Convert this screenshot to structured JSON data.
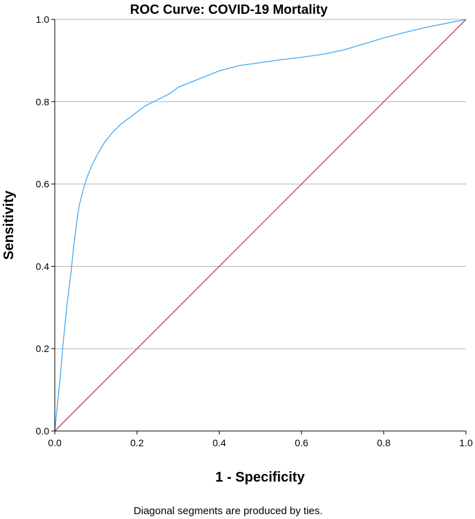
{
  "chart_data": {
    "type": "line",
    "title": "ROC Curve: COVID-19 Mortality",
    "xlabel": "1 - Specificity",
    "ylabel": "Sensitivity",
    "footnote": "Diagonal segments are produced by ties.",
    "xlim": [
      0,
      1
    ],
    "ylim": [
      0,
      1
    ],
    "xticks": [
      "0.0",
      "0.2",
      "0.4",
      "0.6",
      "0.8",
      "1.0"
    ],
    "yticks": [
      "0.0",
      "0.2",
      "0.4",
      "0.6",
      "0.8",
      "1.0"
    ],
    "grid": "horizontal",
    "series": [
      {
        "color": "#3fa9f5",
        "x": [
          0,
          0.005,
          0.01,
          0.015,
          0.02,
          0.025,
          0.03,
          0.035,
          0.04,
          0.045,
          0.05,
          0.055,
          0.06,
          0.07,
          0.08,
          0.09,
          0.1,
          0.12,
          0.14,
          0.16,
          0.18,
          0.2,
          0.22,
          0.25,
          0.28,
          0.3,
          0.35,
          0.4,
          0.45,
          0.5,
          0.55,
          0.6,
          0.65,
          0.7,
          0.75,
          0.8,
          0.85,
          0.9,
          0.95,
          1.0
        ],
        "y": [
          0,
          0.05,
          0.1,
          0.15,
          0.21,
          0.26,
          0.31,
          0.35,
          0.39,
          0.44,
          0.48,
          0.52,
          0.55,
          0.59,
          0.62,
          0.645,
          0.665,
          0.7,
          0.725,
          0.745,
          0.76,
          0.775,
          0.79,
          0.805,
          0.82,
          0.835,
          0.855,
          0.875,
          0.888,
          0.895,
          0.902,
          0.908,
          0.915,
          0.925,
          0.94,
          0.955,
          0.968,
          0.98,
          0.99,
          1.0
        ]
      },
      {
        "color": "#c0395a",
        "x": [
          0,
          1
        ],
        "y": [
          0,
          1
        ]
      }
    ]
  }
}
